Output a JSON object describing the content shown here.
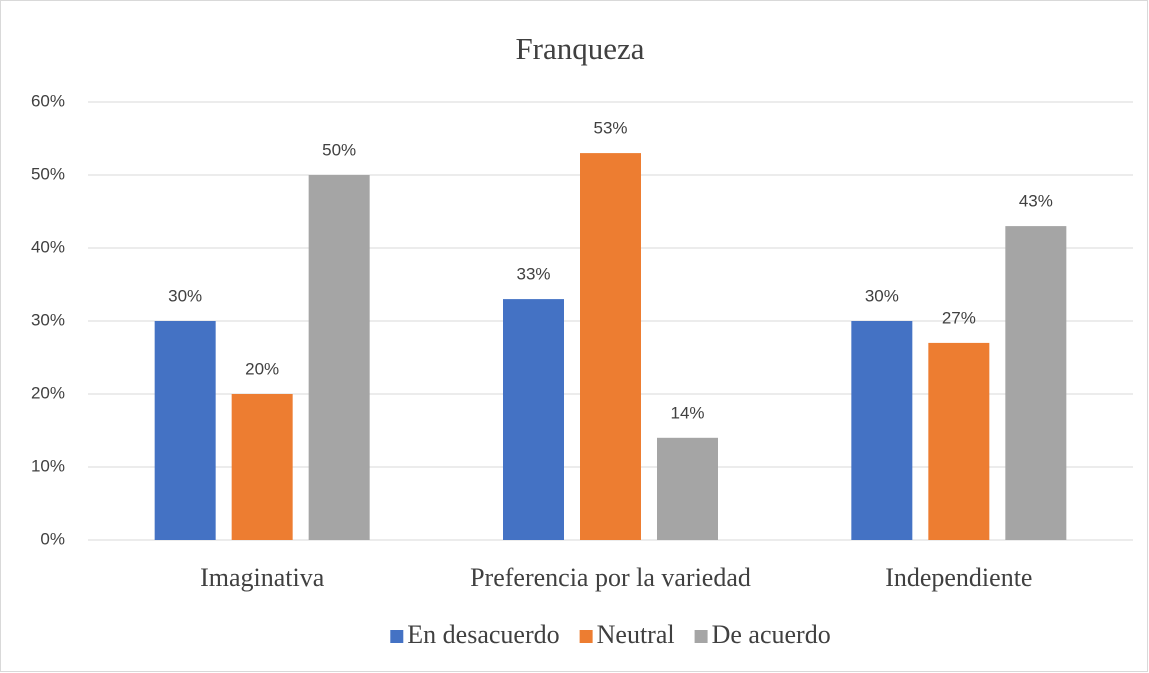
{
  "chart_data": {
    "type": "bar",
    "title": "Franqueza",
    "categories": [
      "Imaginativa",
      "Preferencia por la variedad",
      "Independiente"
    ],
    "series": [
      {
        "name": "En desacuerdo",
        "color": "#4472c4",
        "values": [
          30,
          33,
          30
        ],
        "value_labels": [
          "30%",
          "33%",
          "30%"
        ]
      },
      {
        "name": "Neutral",
        "color": "#ed7d31",
        "values": [
          20,
          53,
          27
        ],
        "value_labels": [
          "20%",
          "53%",
          "27%"
        ]
      },
      {
        "name": "De acuerdo",
        "color": "#a5a5a5",
        "values": [
          50,
          14,
          43
        ],
        "value_labels": [
          "50%",
          "14%",
          "43%"
        ]
      }
    ],
    "ylim": [
      0,
      60
    ],
    "yticks": [
      {
        "value": 0,
        "label": "0%"
      },
      {
        "value": 10,
        "label": "10%"
      },
      {
        "value": 20,
        "label": "20%"
      },
      {
        "value": 30,
        "label": "30%"
      },
      {
        "value": 40,
        "label": "40%"
      },
      {
        "value": 50,
        "label": "50%"
      },
      {
        "value": 60,
        "label": "60%"
      }
    ],
    "grid": true,
    "legend": "bottom"
  }
}
